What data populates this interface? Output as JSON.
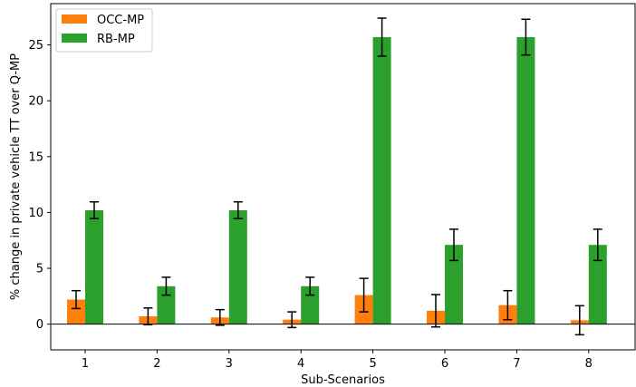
{
  "chart_data": {
    "type": "bar",
    "xlabel": "Sub-Scenarios",
    "ylabel": "% change in private vehicle TT over Q-MP",
    "categories": [
      "1",
      "2",
      "3",
      "4",
      "5",
      "6",
      "7",
      "8"
    ],
    "ylim": [
      -2.3,
      28.7
    ],
    "yticks": [
      0,
      5,
      10,
      15,
      20,
      25
    ],
    "grid": false,
    "legend_position": "top-left",
    "zero_line": true,
    "series": [
      {
        "name": "OCC-MP",
        "color": "#ff7f0e",
        "values": [
          2.2,
          0.7,
          0.6,
          0.4,
          2.6,
          1.2,
          1.7,
          0.35
        ],
        "errors": [
          0.8,
          0.75,
          0.7,
          0.7,
          1.5,
          1.45,
          1.3,
          1.3
        ]
      },
      {
        "name": "RB-MP",
        "color": "#2ca02c",
        "values": [
          10.2,
          3.4,
          10.2,
          3.4,
          25.7,
          7.1,
          25.7,
          7.1
        ],
        "errors": [
          0.75,
          0.8,
          0.75,
          0.8,
          1.7,
          1.4,
          1.6,
          1.4
        ]
      }
    ]
  }
}
